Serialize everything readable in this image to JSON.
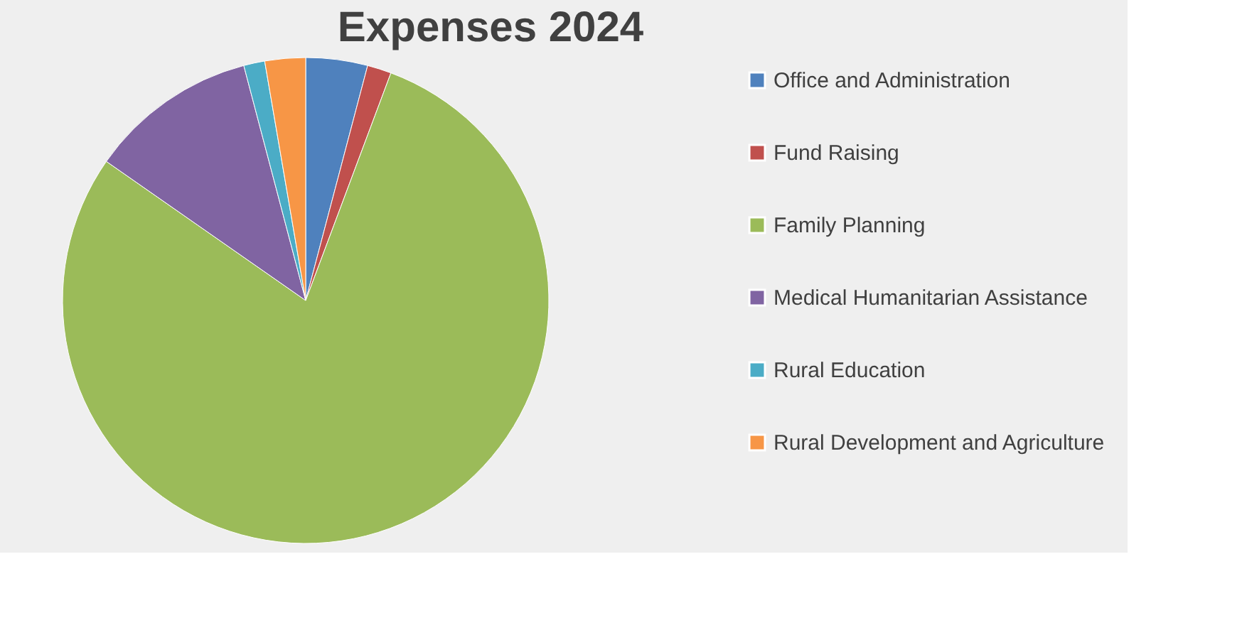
{
  "chart_data": {
    "type": "pie",
    "title": "Expenses 2024",
    "categories": [
      "Office and Administration",
      "Fund Raising",
      "Family Planning",
      "Medical Humanitarian Assistance",
      "Rural Education",
      "Rural Development and Agriculture"
    ],
    "values": [
      4.1,
      1.6,
      79.0,
      11.2,
      1.4,
      2.7
    ],
    "colors": [
      "#4f81bd",
      "#c0504d",
      "#9bbb59",
      "#8064a2",
      "#4bacc6",
      "#f79646"
    ],
    "legend": "right"
  }
}
